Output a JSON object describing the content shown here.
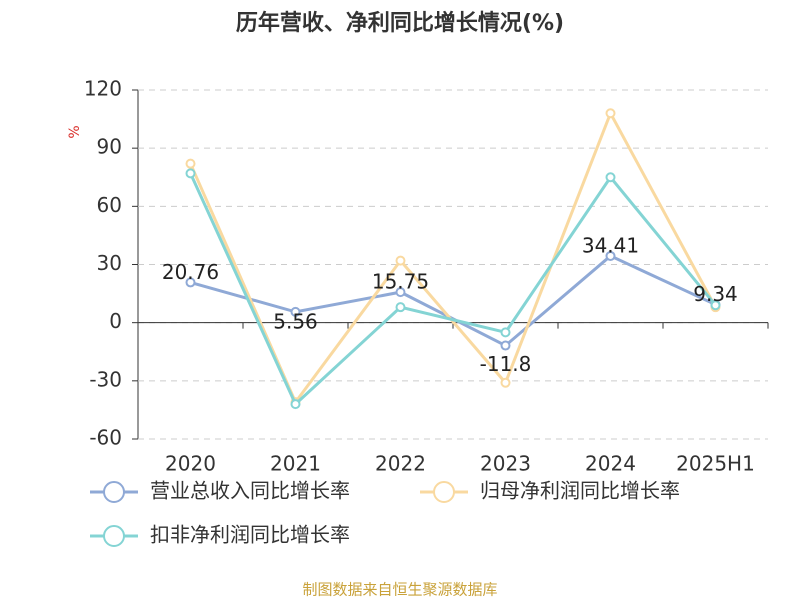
{
  "chart_data": {
    "type": "line",
    "title": "历年营收、净利同比增长情况(%)",
    "y_unit": "%",
    "categories": [
      "2020",
      "2021",
      "2022",
      "2023",
      "2024",
      "2025H1"
    ],
    "series": [
      {
        "name": "营业总收入同比增长率",
        "color": "#8fa9d6",
        "values": [
          20.76,
          5.56,
          15.75,
          -11.8,
          34.41,
          9.34
        ],
        "data_labels": true
      },
      {
        "name": "归母净利润同比增长率",
        "color": "#f9d9a0",
        "values": [
          82,
          -41,
          32,
          -31,
          108,
          8
        ]
      },
      {
        "name": "扣非净利润同比增长率",
        "color": "#84d4d4",
        "values": [
          77,
          -42,
          8,
          -5,
          75,
          9
        ]
      }
    ],
    "ylim": [
      -60,
      120
    ],
    "yticks": [
      -60,
      -30,
      0,
      30,
      60,
      90,
      120
    ],
    "grid": true,
    "legend": "bottom",
    "source": "制图数据来自恒生聚源数据库"
  }
}
